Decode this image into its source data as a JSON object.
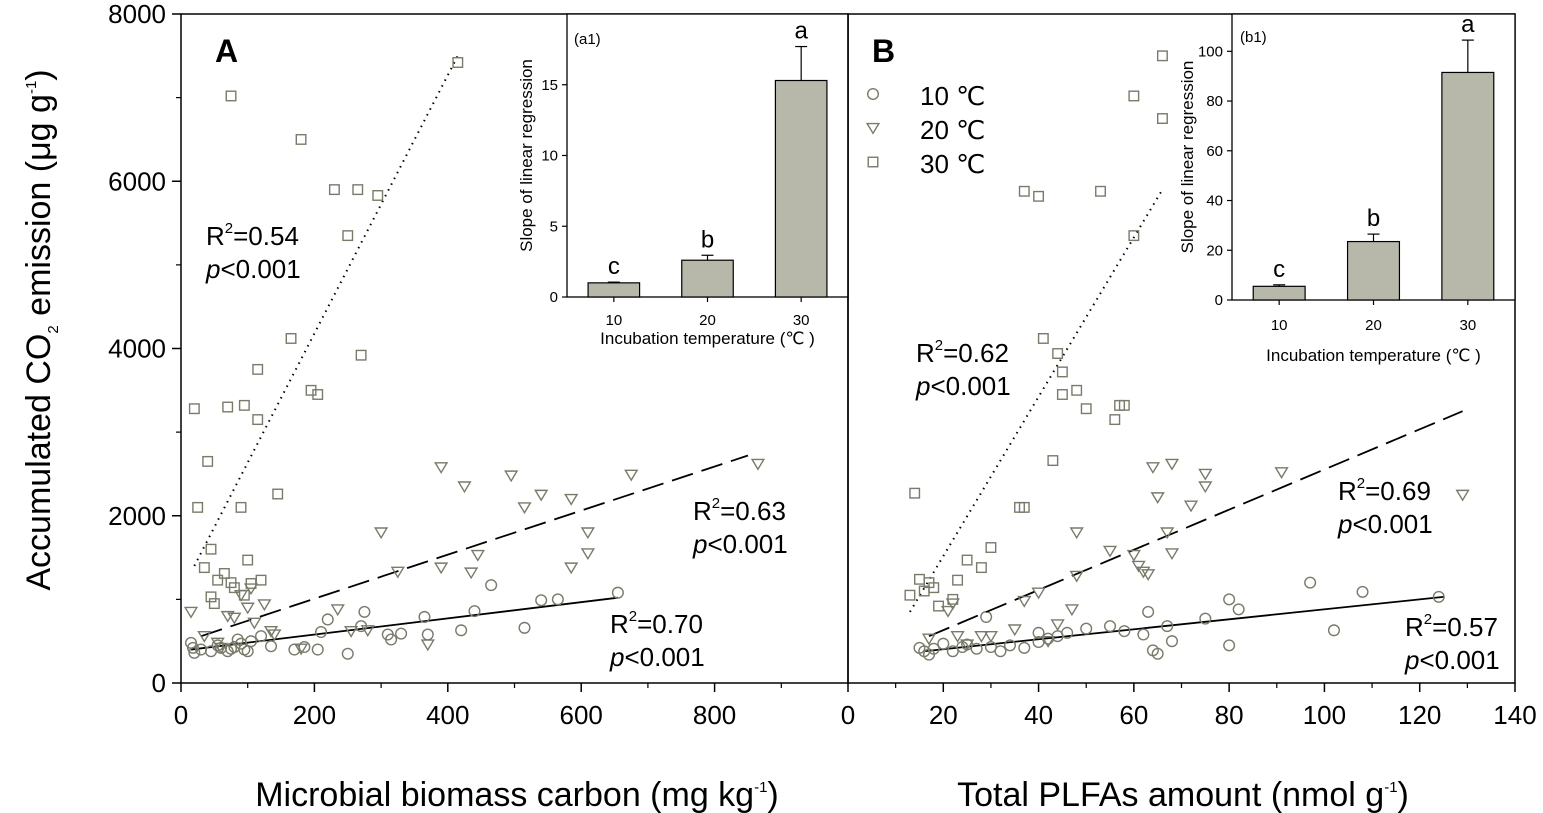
{
  "figure": {
    "ylabel_main": "Accumulated CO",
    "ylabel_sub": "2",
    "ylabel_rest": " emission (μg g",
    "ylabel_sup": "-1",
    "ylabel_end": ")"
  },
  "chart_data": [
    {
      "type": "scatter",
      "panel": "A",
      "xlabel_main": "Microbial biomass carbon (mg kg",
      "xlabel_sup": "-1",
      "xlabel_end": ")",
      "xlim": [
        0,
        1000
      ],
      "ylim": [
        0,
        8000
      ],
      "xticks": [
        0,
        200,
        400,
        600,
        800
      ],
      "yticks": [
        0,
        2000,
        4000,
        6000,
        8000
      ],
      "series": [
        {
          "name": "10 ℃",
          "marker": "circle",
          "line": "solid",
          "fit": {
            "x0": 15,
            "y0": 400,
            "x1": 655,
            "y1": 1020
          },
          "r2_label": "R",
          "r2_sup": "2",
          "r2_value": "=0.70",
          "p_label": "p",
          "p_value": "<0.001",
          "points": [
            [
              15,
              480
            ],
            [
              18,
              420
            ],
            [
              20,
              360
            ],
            [
              30,
              400
            ],
            [
              45,
              380
            ],
            [
              55,
              450
            ],
            [
              60,
              420
            ],
            [
              70,
              380
            ],
            [
              75,
              410
            ],
            [
              80,
              430
            ],
            [
              85,
              520
            ],
            [
              90,
              470
            ],
            [
              95,
              400
            ],
            [
              100,
              380
            ],
            [
              105,
              500
            ],
            [
              120,
              560
            ],
            [
              135,
              440
            ],
            [
              170,
              400
            ],
            [
              185,
              430
            ],
            [
              205,
              400
            ],
            [
              210,
              610
            ],
            [
              220,
              760
            ],
            [
              250,
              350
            ],
            [
              270,
              680
            ],
            [
              275,
              850
            ],
            [
              310,
              580
            ],
            [
              315,
              520
            ],
            [
              330,
              590
            ],
            [
              365,
              790
            ],
            [
              370,
              580
            ],
            [
              420,
              630
            ],
            [
              440,
              860
            ],
            [
              465,
              1170
            ],
            [
              515,
              660
            ],
            [
              540,
              990
            ],
            [
              565,
              1000
            ],
            [
              655,
              1080
            ]
          ]
        },
        {
          "name": "20 ℃",
          "marker": "triangle",
          "line": "dashed",
          "fit": {
            "x0": 30,
            "y0": 560,
            "x1": 850,
            "y1": 2720
          },
          "r2_label": "R",
          "r2_sup": "2",
          "r2_value": "=0.63",
          "p_label": "p",
          "p_value": "<0.001",
          "points": [
            [
              15,
              850
            ],
            [
              35,
              560
            ],
            [
              55,
              480
            ],
            [
              60,
              420
            ],
            [
              70,
              800
            ],
            [
              80,
              780
            ],
            [
              90,
              1050
            ],
            [
              100,
              900
            ],
            [
              105,
              1130
            ],
            [
              110,
              720
            ],
            [
              125,
              940
            ],
            [
              135,
              620
            ],
            [
              140,
              580
            ],
            [
              180,
              410
            ],
            [
              235,
              880
            ],
            [
              255,
              620
            ],
            [
              280,
              630
            ],
            [
              300,
              1800
            ],
            [
              325,
              1330
            ],
            [
              370,
              460
            ],
            [
              390,
              1380
            ],
            [
              390,
              2580
            ],
            [
              425,
              2350
            ],
            [
              435,
              1320
            ],
            [
              445,
              1530
            ],
            [
              495,
              2480
            ],
            [
              515,
              2100
            ],
            [
              540,
              2250
            ],
            [
              585,
              2200
            ],
            [
              585,
              1380
            ],
            [
              610,
              1800
            ],
            [
              610,
              1550
            ],
            [
              675,
              2490
            ],
            [
              865,
              2620
            ]
          ]
        },
        {
          "name": "30 ℃",
          "marker": "square",
          "line": "dotted",
          "fit": {
            "x0": 20,
            "y0": 1400,
            "x1": 415,
            "y1": 7500
          },
          "r2_label": "R",
          "r2_sup": "2",
          "r2_value": "=0.54",
          "p_label": "p",
          "p_value": "<0.001",
          "points": [
            [
              20,
              3280
            ],
            [
              25,
              2100
            ],
            [
              35,
              1380
            ],
            [
              40,
              2650
            ],
            [
              45,
              1600
            ],
            [
              45,
              1030
            ],
            [
              50,
              950
            ],
            [
              55,
              1230
            ],
            [
              65,
              1310
            ],
            [
              70,
              3300
            ],
            [
              75,
              7020
            ],
            [
              75,
              1200
            ],
            [
              80,
              1140
            ],
            [
              90,
              2100
            ],
            [
              95,
              3320
            ],
            [
              95,
              1050
            ],
            [
              100,
              1470
            ],
            [
              105,
              1190
            ],
            [
              115,
              3150
            ],
            [
              115,
              3750
            ],
            [
              120,
              1230
            ],
            [
              145,
              2260
            ],
            [
              165,
              4120
            ],
            [
              180,
              6500
            ],
            [
              195,
              3500
            ],
            [
              205,
              3450
            ],
            [
              230,
              5900
            ],
            [
              250,
              5350
            ],
            [
              265,
              5900
            ],
            [
              270,
              3920
            ],
            [
              295,
              5830
            ],
            [
              415,
              7420
            ]
          ]
        }
      ],
      "inset": {
        "type": "bar",
        "label": "(a1)",
        "categories": [
          "10",
          "20",
          "30"
        ],
        "values": [
          1.0,
          2.6,
          15.3
        ],
        "errors": [
          0.05,
          0.35,
          2.4
        ],
        "letters": [
          "c",
          "b",
          "a"
        ],
        "ylim": [
          0,
          20
        ],
        "yticks": [
          0,
          5,
          10,
          15
        ],
        "ylabel": "Slope of linear regression",
        "xlabel": "Incubation temperature (℃ )"
      }
    },
    {
      "type": "scatter",
      "panel": "B",
      "xlabel_main": "Total PLFAs amount (nmol g",
      "xlabel_sup": "-1",
      "xlabel_end": ")",
      "xlim": [
        0,
        140
      ],
      "ylim": [
        0,
        8000
      ],
      "xticks": [
        0,
        20,
        40,
        60,
        80,
        100,
        120,
        140
      ],
      "yticks": [],
      "series": [
        {
          "name": "10 ℃",
          "marker": "circle",
          "line": "solid",
          "fit": {
            "x0": 16,
            "y0": 380,
            "x1": 125,
            "y1": 1030
          },
          "r2_label": "R",
          "r2_sup": "2",
          "r2_value": "=0.57",
          "p_label": "p",
          "p_value": "<0.001",
          "points": [
            [
              15,
              420
            ],
            [
              16,
              380
            ],
            [
              17,
              340
            ],
            [
              18,
              410
            ],
            [
              20,
              470
            ],
            [
              22,
              380
            ],
            [
              24,
              430
            ],
            [
              25,
              460
            ],
            [
              27,
              410
            ],
            [
              29,
              790
            ],
            [
              30,
              430
            ],
            [
              32,
              380
            ],
            [
              34,
              450
            ],
            [
              37,
              420
            ],
            [
              40,
              600
            ],
            [
              40,
              490
            ],
            [
              42,
              530
            ],
            [
              44,
              560
            ],
            [
              46,
              600
            ],
            [
              50,
              650
            ],
            [
              55,
              680
            ],
            [
              58,
              620
            ],
            [
              62,
              580
            ],
            [
              63,
              850
            ],
            [
              64,
              390
            ],
            [
              65,
              350
            ],
            [
              67,
              680
            ],
            [
              68,
              500
            ],
            [
              75,
              770
            ],
            [
              80,
              450
            ],
            [
              80,
              1000
            ],
            [
              82,
              880
            ],
            [
              97,
              1200
            ],
            [
              102,
              630
            ],
            [
              108,
              1090
            ],
            [
              124,
              1030
            ]
          ]
        },
        {
          "name": "20 ℃",
          "marker": "triangle",
          "line": "dashed",
          "fit": {
            "x0": 17,
            "y0": 560,
            "x1": 129,
            "y1": 3250
          },
          "r2_label": "R",
          "r2_sup": "2",
          "r2_value": "=0.69",
          "p_label": "p",
          "p_value": "<0.001",
          "points": [
            [
              17,
              530
            ],
            [
              21,
              860
            ],
            [
              22,
              950
            ],
            [
              23,
              560
            ],
            [
              25,
              460
            ],
            [
              28,
              560
            ],
            [
              30,
              560
            ],
            [
              35,
              640
            ],
            [
              37,
              980
            ],
            [
              40,
              1080
            ],
            [
              42,
              500
            ],
            [
              44,
              700
            ],
            [
              47,
              880
            ],
            [
              48,
              1800
            ],
            [
              48,
              1280
            ],
            [
              55,
              1580
            ],
            [
              60,
              1530
            ],
            [
              61,
              1400
            ],
            [
              62,
              1330
            ],
            [
              63,
              1300
            ],
            [
              64,
              2580
            ],
            [
              65,
              2220
            ],
            [
              67,
              1800
            ],
            [
              68,
              2620
            ],
            [
              68,
              1550
            ],
            [
              72,
              2120
            ],
            [
              75,
              2500
            ],
            [
              75,
              2350
            ],
            [
              91,
              2520
            ],
            [
              129,
              2250
            ]
          ]
        },
        {
          "name": "30 ℃",
          "marker": "square",
          "line": "dotted",
          "fit": {
            "x0": 13,
            "y0": 850,
            "x1": 66,
            "y1": 5900
          },
          "r2_label": "R",
          "r2_sup": "2",
          "r2_value": "=0.62",
          "p_label": "p",
          "p_value": "<0.001",
          "points": [
            [
              13,
              1050
            ],
            [
              14,
              2270
            ],
            [
              15,
              1240
            ],
            [
              16,
              1100
            ],
            [
              17,
              1200
            ],
            [
              18,
              1140
            ],
            [
              19,
              920
            ],
            [
              22,
              1000
            ],
            [
              23,
              1230
            ],
            [
              25,
              1470
            ],
            [
              28,
              1380
            ],
            [
              30,
              1620
            ],
            [
              36,
              2100
            ],
            [
              37,
              2100
            ],
            [
              37,
              5880
            ],
            [
              40,
              5820
            ],
            [
              41,
              4120
            ],
            [
              43,
              2660
            ],
            [
              44,
              3940
            ],
            [
              45,
              3720
            ],
            [
              45,
              3450
            ],
            [
              48,
              3500
            ],
            [
              50,
              3280
            ],
            [
              53,
              5880
            ],
            [
              56,
              3150
            ],
            [
              57,
              3320
            ],
            [
              58,
              3320
            ],
            [
              60,
              5350
            ],
            [
              60,
              7020
            ],
            [
              66,
              6750
            ],
            [
              66,
              7500
            ]
          ]
        }
      ],
      "inset": {
        "type": "bar",
        "label": "(b1)",
        "categories": [
          "10",
          "20",
          "30"
        ],
        "values": [
          5.5,
          23.5,
          91.5
        ],
        "errors": [
          0.6,
          3.0,
          13.0
        ],
        "letters": [
          "c",
          "b",
          "a"
        ],
        "ylim": [
          0,
          115
        ],
        "yticks": [
          0,
          20,
          40,
          60,
          80,
          100
        ],
        "ylabel": "Slope of linear regression",
        "xlabel": "Incubation temperature (℃ )"
      }
    }
  ],
  "legend": [
    {
      "marker": "circle",
      "label": "10 ℃"
    },
    {
      "marker": "triangle",
      "label": "20 ℃"
    },
    {
      "marker": "square",
      "label": "30 ℃"
    }
  ],
  "colors": {
    "marker": "#7a7a6a",
    "bar_fill": "#b8b8aa",
    "axis": "#000000"
  }
}
